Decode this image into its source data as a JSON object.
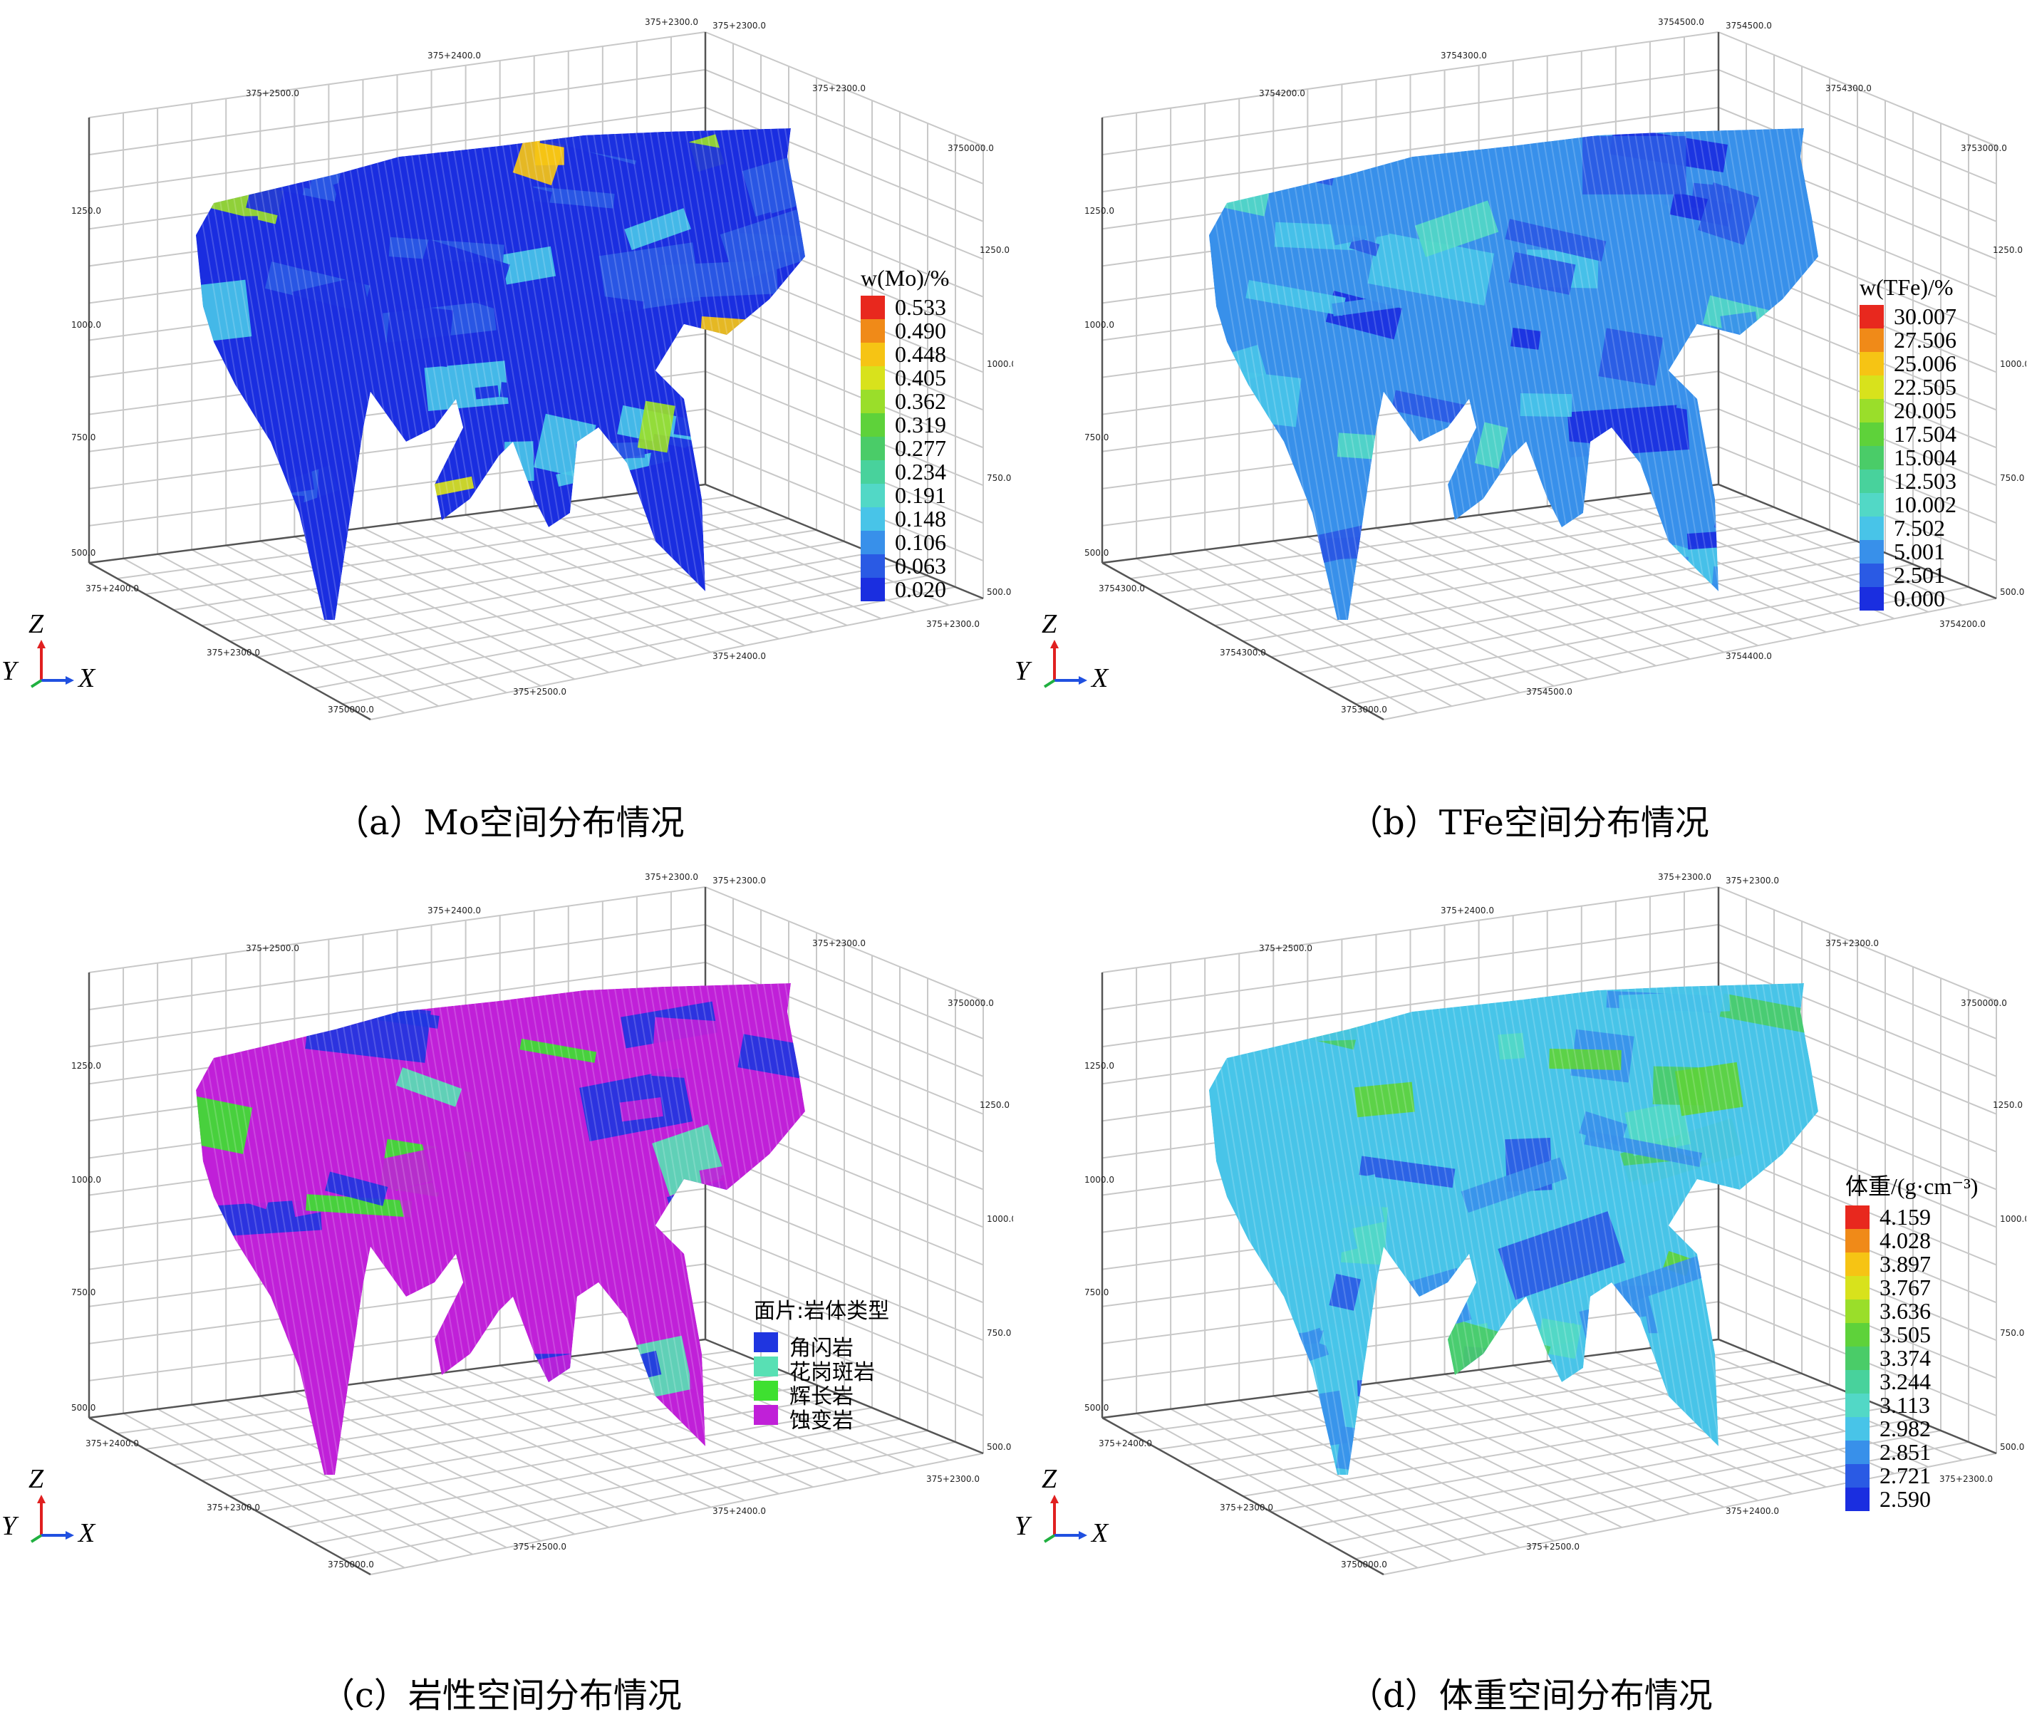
{
  "panels": [
    {
      "id": "a",
      "caption": "（a）Mo空间分布情况",
      "legend_title": "w(Mo)/%",
      "legend_values": [
        "0.533",
        "0.490",
        "0.448",
        "0.405",
        "0.362",
        "0.319",
        "0.277",
        "0.234",
        "0.191",
        "0.148",
        "0.106",
        "0.063",
        "0.020"
      ],
      "legend_colors": [
        "#e8281e",
        "#f08a18",
        "#f6c414",
        "#d8e21c",
        "#9ade2a",
        "#5ed23a",
        "#4acc68",
        "#48d29c",
        "#52d8c6",
        "#48c4e8",
        "#3890ea",
        "#2a5ae4",
        "#1a2ee0"
      ],
      "axis_labels": {
        "z": "Z",
        "y": "Y",
        "x": "X"
      },
      "tick_labels": {
        "top_back": [
          "375+2500.0",
          "375+2400.0",
          "375+2300.0"
        ],
        "z_left": [
          "1250.0",
          "1000.0",
          "750.0",
          "500.0"
        ],
        "z_right": [
          "1250.0",
          "1000.0",
          "750.0",
          "500.0"
        ],
        "top_right": [
          "375+2300.0",
          "3750000.0"
        ],
        "bottom_left": [
          "375+2400.0",
          "375+2300.0",
          "3750000.0"
        ],
        "bottom_right": [
          "375+2500.0",
          "375+2400.0",
          "375+2300.0"
        ]
      }
    },
    {
      "id": "b",
      "caption": "（b）TFe空间分布情况",
      "legend_title": "w(TFe)/%",
      "legend_values": [
        "30.007",
        "27.506",
        "25.006",
        "22.505",
        "20.005",
        "17.504",
        "15.004",
        "12.503",
        "10.002",
        "7.502",
        "5.001",
        "2.501",
        "0.000"
      ],
      "legend_colors": [
        "#e8281e",
        "#f08a18",
        "#f6c414",
        "#d8e21c",
        "#9ade2a",
        "#5ed23a",
        "#4acc68",
        "#48d29c",
        "#52d8c6",
        "#48c4e8",
        "#3890ea",
        "#2a5ae4",
        "#1a2ee0"
      ],
      "axis_labels": {
        "z": "Z",
        "y": "Y",
        "x": "X"
      },
      "tick_labels": {
        "top_back": [
          "3754200.0",
          "3754300.0",
          "3754500.0"
        ],
        "z_left": [
          "1250.0",
          "1000.0",
          "750.0",
          "500.0"
        ],
        "z_right": [
          "1250.0",
          "1000.0",
          "750.0",
          "500.0"
        ],
        "top_right": [
          "3754300.0",
          "3753000.0"
        ],
        "bottom_left": [
          "3754300.0",
          "3754300.0",
          "3753000.0"
        ],
        "bottom_right": [
          "3754500.0",
          "3754400.0",
          "3754200.0"
        ]
      }
    },
    {
      "id": "c",
      "caption": "（c）岩性空间分布情况",
      "legend_title": "面片:岩体类型",
      "categories": [
        "角闪岩",
        "花岗斑岩",
        "辉长岩",
        "蚀变岩"
      ],
      "category_colors": [
        "#1f35e0",
        "#58e0b4",
        "#3ee030",
        "#c020d8"
      ],
      "axis_labels": {
        "z": "Z",
        "y": "Y",
        "x": "X"
      },
      "tick_labels": {
        "top_back": [
          "375+2500.0",
          "375+2400.0",
          "375+2300.0"
        ],
        "z_left": [
          "1250.0",
          "1000.0",
          "750.0",
          "500.0"
        ],
        "z_right": [
          "1250.0",
          "1000.0",
          "750.0",
          "500.0"
        ],
        "top_right": [
          "375+2300.0",
          "3750000.0"
        ],
        "bottom_left": [
          "375+2400.0",
          "375+2300.0",
          "3750000.0"
        ],
        "bottom_right": [
          "375+2500.0",
          "375+2400.0",
          "375+2300.0"
        ]
      }
    },
    {
      "id": "d",
      "caption": "（d）体重空间分布情况",
      "legend_title": "体重/(g·cm⁻³)",
      "legend_values": [
        "4.159",
        "4.028",
        "3.897",
        "3.767",
        "3.636",
        "3.505",
        "3.374",
        "3.244",
        "3.113",
        "2.982",
        "2.851",
        "2.721",
        "2.590"
      ],
      "legend_colors": [
        "#e8281e",
        "#f08a18",
        "#f6c414",
        "#d8e21c",
        "#9ade2a",
        "#5ed23a",
        "#4acc68",
        "#48d29c",
        "#52d8c6",
        "#48c4e8",
        "#3890ea",
        "#2a5ae4",
        "#1a2ee0"
      ],
      "axis_labels": {
        "z": "Z",
        "y": "Y",
        "x": "X"
      },
      "tick_labels": {
        "top_back": [
          "375+2500.0",
          "375+2400.0",
          "375+2300.0"
        ],
        "z_left": [
          "1250.0",
          "1000.0",
          "750.0",
          "500.0"
        ],
        "z_right": [
          "1250.0",
          "1000.0",
          "750.0",
          "500.0"
        ],
        "top_right": [
          "375+2300.0",
          "3750000.0"
        ],
        "bottom_left": [
          "375+2400.0",
          "375+2300.0",
          "3750000.0"
        ],
        "bottom_right": [
          "375+2500.0",
          "375+2400.0",
          "375+2300.0"
        ]
      }
    }
  ]
}
